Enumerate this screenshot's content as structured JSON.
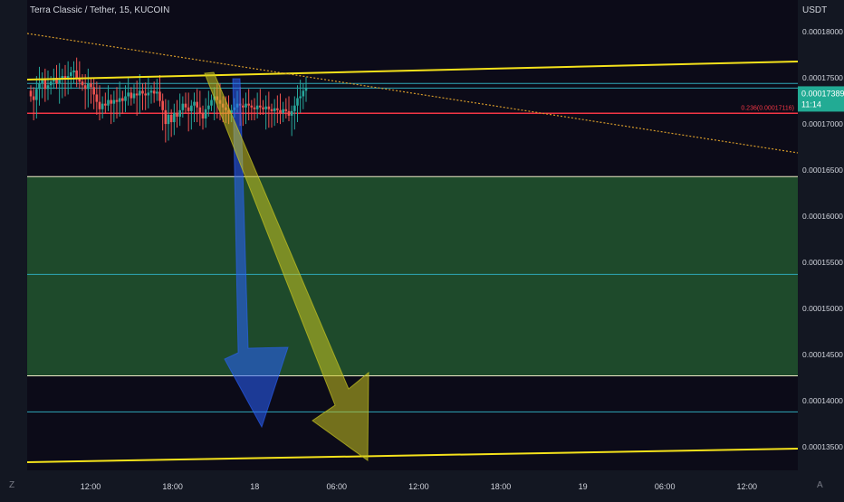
{
  "header": {
    "symbol_title": "Terra Classic / Tether, 15, KUCOIN",
    "currency": "USDT"
  },
  "corner": {
    "left_label": "Z",
    "right_label": "A"
  },
  "colors": {
    "background": "#131722",
    "plot_background": "#0c0b18",
    "axis_text": "#d1d4dc",
    "candle_up": "#26a69a",
    "candle_down": "#ef5350",
    "trendline": "#f5e21b",
    "fib_line": "#f23645",
    "zone_fill": "#1e4a2b",
    "zone_border": "#f0ecc8",
    "cyan_line": "#2fa8b8",
    "dotted_trend": "#d59a2a",
    "blue_arrow": "#2962ff",
    "yellow_arrow": "#c8c420",
    "price_tag": "#22ab94"
  },
  "chart_data": {
    "type": "candlestick",
    "ylim": [
      0.0001325,
      0.0001825
    ],
    "y_ticks": [
      "0.00018000",
      "0.00017500",
      "0.00017000",
      "0.00016500",
      "0.00016000",
      "0.00015500",
      "0.00015000",
      "0.00014500",
      "0.00014000",
      "0.00013500"
    ],
    "x_tick_labels": [
      "12:00",
      "18:00",
      "18",
      "06:00",
      "12:00",
      "18:00",
      "19",
      "06:00",
      "12:00"
    ],
    "current_price": {
      "label": "0.00017389",
      "countdown": "11:14",
      "value": 0.00017389
    },
    "fib_level": {
      "label": "0.236(0.00017116)",
      "value": 0.00017116
    },
    "horizontal_levels": [
      {
        "kind": "cyan",
        "value": 0.0001744
      },
      {
        "kind": "zone-top",
        "value": 0.0001643
      },
      {
        "kind": "cyan",
        "value": 0.0001537
      },
      {
        "kind": "zone-bottom",
        "value": 0.0001427
      },
      {
        "kind": "cyan",
        "value": 0.0001388
      }
    ],
    "candle_series": {
      "start": 0.0001736,
      "closes": [
        0.000173,
        0.0001726,
        0.0001738,
        0.0001744,
        0.0001748,
        0.0001738,
        0.0001742,
        0.0001746,
        0.000175,
        0.0001744,
        0.0001748,
        0.0001752,
        0.0001748,
        0.0001752,
        0.0001756,
        0.0001758,
        0.000175,
        0.0001746,
        0.0001742,
        0.0001738,
        0.0001744,
        0.000174,
        0.0001732,
        0.0001724,
        0.0001716,
        0.0001722,
        0.000172,
        0.0001726,
        0.0001722,
        0.0001726,
        0.0001724,
        0.0001728,
        0.0001725,
        0.000173,
        0.0001734,
        0.0001728,
        0.0001733,
        0.0001731,
        0.0001736,
        0.0001733,
        0.0001731,
        0.0001734,
        0.0001736,
        0.0001733,
        0.0001735,
        0.0001725,
        0.0001715,
        0.00017,
        0.000171,
        0.0001702,
        0.0001712,
        0.0001708,
        0.0001715,
        0.0001722,
        0.0001718,
        0.0001714,
        0.000172,
        0.0001724,
        0.0001718,
        0.0001712,
        0.0001706,
        0.0001716,
        0.000172,
        0.0001726,
        0.000173,
        0.0001726,
        0.0001722,
        0.0001718,
        0.0001715,
        0.0001712,
        0.0001715,
        0.0001718,
        0.0001722,
        0.000172,
        0.0001718,
        0.0001722,
        0.000172,
        0.0001718,
        0.0001716,
        0.000172,
        0.0001718,
        0.0001716,
        0.0001719,
        0.0001716,
        0.0001714,
        0.0001717,
        0.0001715,
        0.0001712,
        0.0001716,
        0.0001714,
        0.0001709,
        0.0001714,
        0.000172,
        0.0001728,
        0.000173,
        0.0001736,
        0.0001739
      ]
    }
  }
}
